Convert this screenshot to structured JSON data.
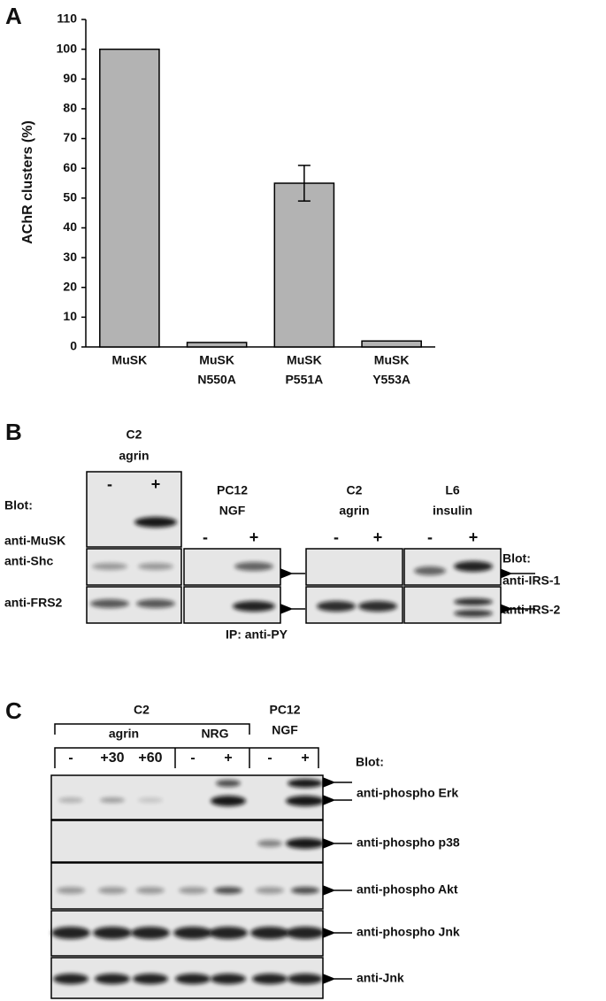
{
  "chart_data": {
    "type": "bar",
    "panel_label": "A",
    "y_label": "AChR clusters (%)",
    "categories": [
      [
        "MuSK"
      ],
      [
        "MuSK",
        "N550A"
      ],
      [
        "MuSK",
        "P551A"
      ],
      [
        "MuSK",
        "Y553A"
      ]
    ],
    "values": [
      100,
      1.5,
      55,
      2
    ],
    "errors": [
      null,
      null,
      6,
      null
    ],
    "color": "#b3b3b3",
    "ylim": [
      0,
      110
    ],
    "yticks": [
      0,
      10,
      20,
      30,
      40,
      50,
      60,
      70,
      80,
      90,
      100,
      110
    ],
    "grid": false
  },
  "panel_b": {
    "label": "B",
    "groups": [
      {
        "header": [
          "C2",
          "agrin"
        ],
        "lanes": [
          "-",
          "+"
        ]
      },
      {
        "header": [
          "PC12",
          "NGF"
        ],
        "lanes": [
          "-",
          "+"
        ]
      },
      {
        "header": [
          "C2",
          "agrin"
        ],
        "lanes": [
          "-",
          "+"
        ]
      },
      {
        "header": [
          "L6",
          "insulin"
        ],
        "lanes": [
          "-",
          "+"
        ]
      }
    ],
    "blot_left": "Blot:",
    "rows_left": [
      "anti-MuSK",
      "anti-Shc",
      "anti-FRS2"
    ],
    "blot_right": "Blot:",
    "rows_right": [
      "anti-IRS-1",
      "anti-IRS-2"
    ],
    "footer": "IP: anti-PY"
  },
  "panel_c": {
    "label": "C",
    "group_header": "C2",
    "subgroups": [
      "agrin",
      "NRG"
    ],
    "pc12_header": [
      "PC12",
      "NGF"
    ],
    "lanes": [
      "-",
      "+30",
      "+60",
      "-",
      "+",
      "-",
      "+"
    ],
    "blot_label": "Blot:",
    "rows": [
      "anti-phospho Erk",
      "anti-phospho p38",
      "anti-phospho Akt",
      "anti-phospho Jnk",
      "anti-Jnk"
    ]
  }
}
